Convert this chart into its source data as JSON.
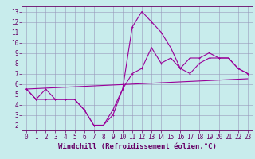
{
  "background_color": "#c8ecec",
  "line_color": "#990099",
  "grid_color": "#9999bb",
  "x_ticks": [
    0,
    1,
    2,
    3,
    4,
    5,
    6,
    7,
    8,
    9,
    10,
    11,
    12,
    13,
    14,
    15,
    16,
    17,
    18,
    19,
    20,
    21,
    22,
    23
  ],
  "y_ticks": [
    2,
    3,
    4,
    5,
    6,
    7,
    8,
    9,
    10,
    11,
    12,
    13
  ],
  "ylim": [
    1.5,
    13.5
  ],
  "xlim": [
    -0.5,
    23.5
  ],
  "line1": [
    5.5,
    4.5,
    4.5,
    4.5,
    4.5,
    4.5,
    3.5,
    2.0,
    2.0,
    3.0,
    5.5,
    7.0,
    7.5,
    9.5,
    8.0,
    8.5,
    7.5,
    8.5,
    8.5,
    9.0,
    8.5,
    8.5,
    7.5,
    7.0
  ],
  "line2": [
    5.5,
    4.5,
    5.5,
    4.5,
    4.5,
    4.5,
    3.5,
    2.0,
    2.0,
    3.5,
    5.5,
    11.5,
    13.0,
    12.0,
    11.0,
    9.5,
    7.5,
    7.0,
    8.0,
    8.5,
    8.5,
    8.5,
    7.5,
    7.0
  ],
  "line3_x": [
    0,
    23
  ],
  "line3_y": [
    5.5,
    6.5
  ],
  "xlabel": "Windchill (Refroidissement éolien,°C)",
  "tick_fontsize": 5.5,
  "xlabel_fontsize": 6.5,
  "lw": 0.8,
  "ms": 2.0
}
